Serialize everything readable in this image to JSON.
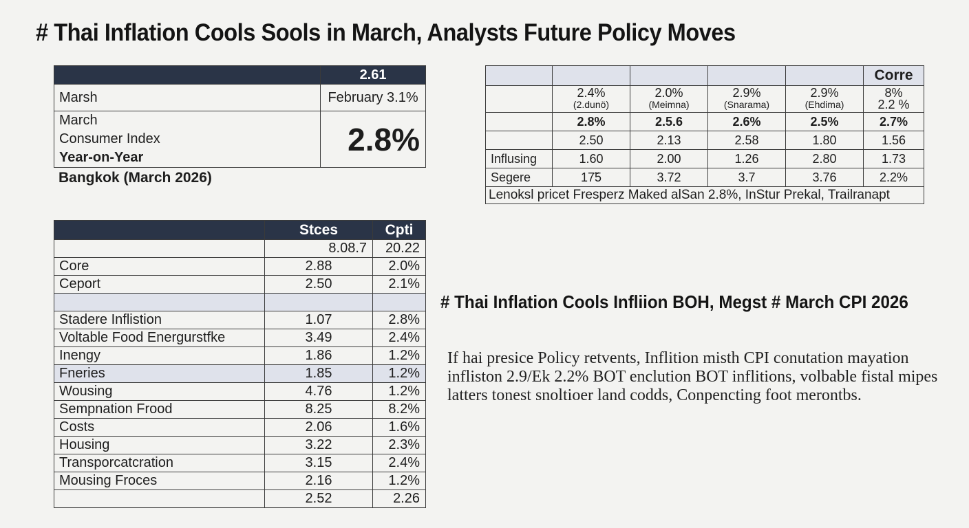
{
  "title": "# Thai Inflation Cools Sools in March,  Analysts Future Policy Moves",
  "summary_table": {
    "header_value": "2.61",
    "row1_label": "Marsh",
    "row1_value": "February 3.1%",
    "row2_lines": [
      "March",
      "Consumer Index",
      "Year-on-Year"
    ],
    "headline_value": "2.8%"
  },
  "caption": "Bangkok (March 2026)",
  "right_table": {
    "header_label": "Corre",
    "row_pct": [
      {
        "value": "2.4%",
        "sub": "(2.dunö)"
      },
      {
        "value": "2.0%",
        "sub": "(Meimna)"
      },
      {
        "value": "2.9%",
        "sub": "(Snarama)"
      },
      {
        "value": "2.9%",
        "sub": "(Ehdima)"
      },
      {
        "value": "8%",
        "sub": "2.2 %"
      }
    ],
    "row_bold": [
      "2.8%",
      "2.5.6",
      "2.6%",
      "2.5%",
      "2.7%"
    ],
    "rows": [
      {
        "label": "",
        "values": [
          "2.50",
          "2.13",
          "2.58",
          "1.80",
          "1.56"
        ]
      },
      {
        "label": "Influsing",
        "values": [
          "1.60",
          "2.00",
          "1.26",
          "2.80",
          "1.73"
        ]
      },
      {
        "label": "Segere",
        "values": [
          "17̃5",
          "3.72",
          "3.7",
          "3.76",
          "2.2%"
        ]
      }
    ],
    "footer": "Lenoksl pricet Fresperz Maked alSan 2.8%,  InStur Prekal, Trailranapt"
  },
  "components_table": {
    "headers": [
      "",
      "Stces",
      "Cpti"
    ],
    "top_row": [
      "",
      "8.08.7",
      "20.22"
    ],
    "rows_a": [
      {
        "label": "Core",
        "v1": "2.88",
        "v2": "2.0%"
      },
      {
        "label": "Ceport",
        "v1": "2.50",
        "v2": "2.1%"
      }
    ],
    "rows_b": [
      {
        "label": "Stadere Inflistion",
        "v1": "1.07",
        "v2": "2.8%"
      },
      {
        "label": "Voltable Food Energurstfke",
        "v1": "3.49",
        "v2": "2.4%"
      },
      {
        "label": "Inengy",
        "v1": "1.86",
        "v2": "1.2%"
      },
      {
        "label": "Fneries",
        "v1": "1.85",
        "v2": "1.2%"
      },
      {
        "label": "Wousing",
        "v1": "4.76",
        "v2": "1.2%"
      },
      {
        "label": "Sempnation Frood",
        "v1": "8.25",
        "v2": "8.2%"
      },
      {
        "label": "Costs",
        "v1": "2.06",
        "v2": "1.6%"
      },
      {
        "label": "Housing",
        "v1": "3.22",
        "v2": "2.3%"
      },
      {
        "label": "Transporcatcration",
        "v1": "3.15",
        "v2": "2.4%"
      },
      {
        "label": "Mousing Froces",
        "v1": "2.16",
        "v2": "1.2%"
      },
      {
        "label": "",
        "v1": "2.52",
        "v2": "2.26"
      }
    ]
  },
  "subheading": "# Thai Inflation Cools Infliion BOH, Megst # March CPI 2026",
  "paragraph": "If hai presice Policy retvents, Inflition misth CPI conutation mayation infliston 2.9/Ek 2.2% BOT enclution BOT inflitions, volbable fistal mipes latters tonest snoltioer land codds, Conpencting foot merontbs."
}
